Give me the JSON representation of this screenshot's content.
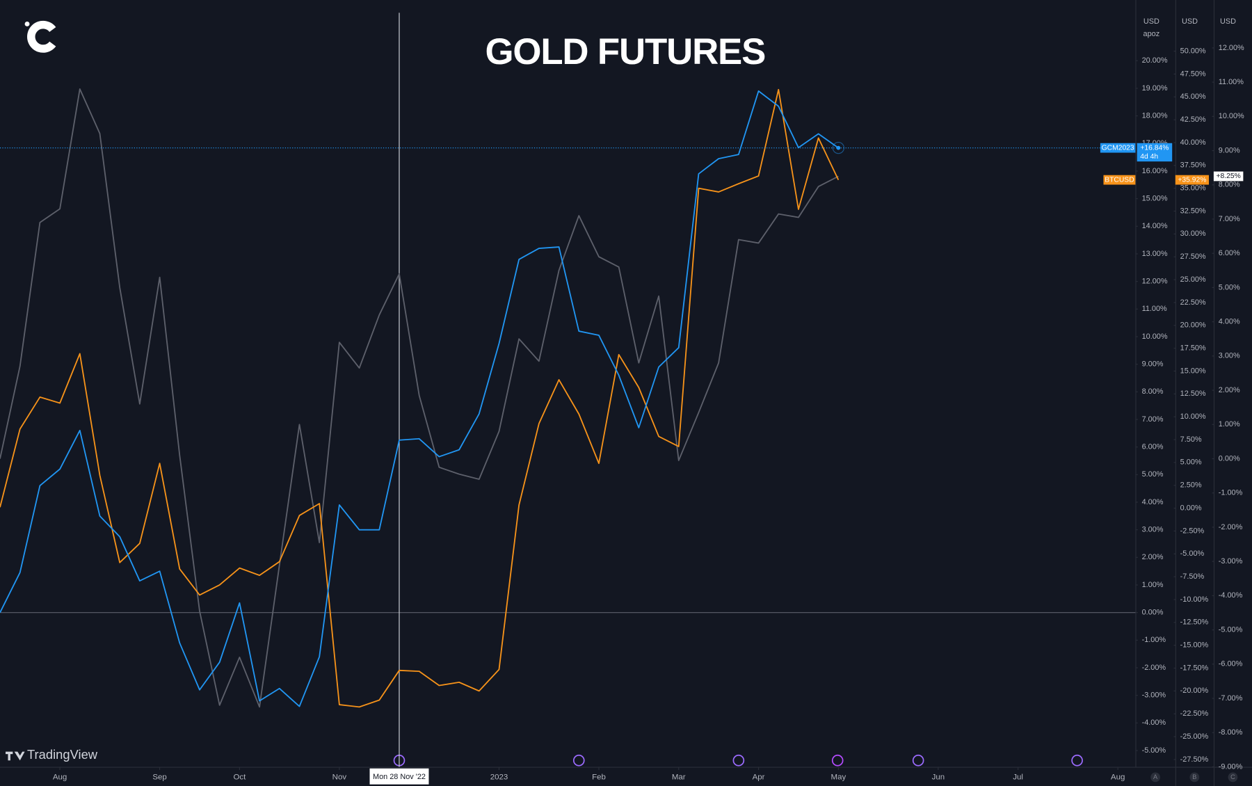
{
  "chart_data": {
    "type": "line",
    "title": "GOLD FUTURES",
    "brand": "TradingView",
    "axis_headers": [
      "USD",
      "USD",
      "USD"
    ],
    "axis_mode": "apoz",
    "countdown": "4d 4h",
    "panes": [
      "A",
      "B",
      "C"
    ],
    "x": [
      0,
      1,
      2,
      3,
      4,
      5,
      6,
      7,
      8,
      9,
      10,
      11,
      12,
      13,
      14,
      15,
      16,
      17,
      18,
      19,
      20,
      21,
      22,
      23,
      24,
      25,
      26,
      27,
      28,
      29,
      30,
      31,
      32,
      33,
      34,
      35,
      36,
      37,
      38,
      39,
      40,
      41,
      42
    ],
    "xlim": [
      0,
      56.88
    ],
    "xticks": [
      {
        "value": 3,
        "label": "Aug"
      },
      {
        "value": 8,
        "label": "Sep"
      },
      {
        "value": 12,
        "label": "Oct"
      },
      {
        "value": 17,
        "label": "Nov"
      },
      {
        "value": 25,
        "label": "2023"
      },
      {
        "value": 30,
        "label": "Feb"
      },
      {
        "value": 34,
        "label": "Mar"
      },
      {
        "value": 38,
        "label": "Apr"
      },
      {
        "value": 42,
        "label": "May"
      },
      {
        "value": 47,
        "label": "Jun"
      },
      {
        "value": 51,
        "label": "Jul"
      },
      {
        "value": 56,
        "label": "Aug"
      }
    ],
    "crosshair": {
      "value": 20,
      "label": "Mon 28 Nov '22"
    },
    "ylim": [
      -5.59,
      22.2
    ],
    "yticks": [
      {
        "value": -5,
        "label": "-5.00%"
      },
      {
        "value": -4,
        "label": "-4.00%"
      },
      {
        "value": -3,
        "label": "-3.00%"
      },
      {
        "value": -2,
        "label": "-2.00%"
      },
      {
        "value": -1,
        "label": "-1.00%"
      },
      {
        "value": 0,
        "label": "0.00%"
      },
      {
        "value": 1,
        "label": "1.00%"
      },
      {
        "value": 2,
        "label": "2.00%"
      },
      {
        "value": 3,
        "label": "3.00%"
      },
      {
        "value": 4,
        "label": "4.00%"
      },
      {
        "value": 5,
        "label": "5.00%"
      },
      {
        "value": 6,
        "label": "6.00%"
      },
      {
        "value": 7,
        "label": "7.00%"
      },
      {
        "value": 8,
        "label": "8.00%"
      },
      {
        "value": 9,
        "label": "9.00%"
      },
      {
        "value": 10,
        "label": "10.00%"
      },
      {
        "value": 11,
        "label": "11.00%"
      },
      {
        "value": 12,
        "label": "12.00%"
      },
      {
        "value": 13,
        "label": "13.00%"
      },
      {
        "value": 14,
        "label": "14.00%"
      },
      {
        "value": 15,
        "label": "15.00%"
      },
      {
        "value": 16,
        "label": "16.00%"
      },
      {
        "value": 17,
        "label": "17.00%"
      },
      {
        "value": 18,
        "label": "18.00%"
      },
      {
        "value": 19,
        "label": "19.00%"
      },
      {
        "value": 20,
        "label": "20.00%"
      }
    ],
    "y2lim": [
      -28.3,
      55.6
    ],
    "y2ticks": [
      {
        "value": -27.5,
        "label": "-27.50%"
      },
      {
        "value": -25,
        "label": "-25.00%"
      },
      {
        "value": -22.5,
        "label": "-22.50%"
      },
      {
        "value": -20,
        "label": "-20.00%"
      },
      {
        "value": -17.5,
        "label": "-17.50%"
      },
      {
        "value": -15,
        "label": "-15.00%"
      },
      {
        "value": -12.5,
        "label": "-12.50%"
      },
      {
        "value": -10,
        "label": "-10.00%"
      },
      {
        "value": -7.5,
        "label": "-7.50%"
      },
      {
        "value": -5,
        "label": "-5.00%"
      },
      {
        "value": -2.5,
        "label": "-2.50%"
      },
      {
        "value": 0,
        "label": "0.00%"
      },
      {
        "value": 2.5,
        "label": "2.50%"
      },
      {
        "value": 5,
        "label": "5.00%"
      },
      {
        "value": 7.5,
        "label": "7.50%"
      },
      {
        "value": 10,
        "label": "10.00%"
      },
      {
        "value": 12.5,
        "label": "12.50%"
      },
      {
        "value": 15,
        "label": "15.00%"
      },
      {
        "value": 17.5,
        "label": "17.50%"
      },
      {
        "value": 20,
        "label": "20.00%"
      },
      {
        "value": 22.5,
        "label": "22.50%"
      },
      {
        "value": 25,
        "label": "25.00%"
      },
      {
        "value": 27.5,
        "label": "27.50%"
      },
      {
        "value": 30,
        "label": "30.00%"
      },
      {
        "value": 32.5,
        "label": "32.50%"
      },
      {
        "value": 35,
        "label": "35.00%"
      },
      {
        "value": 37.5,
        "label": "37.50%"
      },
      {
        "value": 40,
        "label": "40.00%"
      },
      {
        "value": 42.5,
        "label": "42.50%"
      },
      {
        "value": 45,
        "label": "45.00%"
      },
      {
        "value": 47.5,
        "label": "47.50%"
      },
      {
        "value": 50,
        "label": "50.00%"
      }
    ],
    "y3lim": [
      -9,
      13.4
    ],
    "y3ticks": [
      {
        "value": -9,
        "label": "-9.00%"
      },
      {
        "value": -8,
        "label": "-8.00%"
      },
      {
        "value": -7,
        "label": "-7.00%"
      },
      {
        "value": -6,
        "label": "-6.00%"
      },
      {
        "value": -5,
        "label": "-5.00%"
      },
      {
        "value": -4,
        "label": "-4.00%"
      },
      {
        "value": -3,
        "label": "-3.00%"
      },
      {
        "value": -2,
        "label": "-2.00%"
      },
      {
        "value": -1,
        "label": "-1.00%"
      },
      {
        "value": 0,
        "label": "0.00%"
      },
      {
        "value": 1,
        "label": "1.00%"
      },
      {
        "value": 2,
        "label": "2.00%"
      },
      {
        "value": 3,
        "label": "3.00%"
      },
      {
        "value": 4,
        "label": "4.00%"
      },
      {
        "value": 5,
        "label": "5.00%"
      },
      {
        "value": 6,
        "label": "6.00%"
      },
      {
        "value": 7,
        "label": "7.00%"
      },
      {
        "value": 8,
        "label": "8.00%"
      },
      {
        "value": 9,
        "label": "9.00%"
      },
      {
        "value": 10,
        "label": "10.00%"
      },
      {
        "value": 11,
        "label": "11.00%"
      },
      {
        "value": 12,
        "label": "12.00%"
      }
    ],
    "series": [
      {
        "name": "GCM2023",
        "color": "#2196f3",
        "axis": "y",
        "last_label": "+16.84%",
        "values": [
          0,
          1.45,
          4.6,
          5.2,
          6.6,
          3.5,
          2.75,
          1.15,
          1.5,
          -1.1,
          -2.8,
          -1.8,
          0.35,
          -3.2,
          -2.75,
          -3.4,
          -1.6,
          3.9,
          3.0,
          3.0,
          6.25,
          6.3,
          5.65,
          5.9,
          7.2,
          9.75,
          12.8,
          13.2,
          13.25,
          10.2,
          10.05,
          8.6,
          6.7,
          8.9,
          9.6,
          15.9,
          16.45,
          16.6,
          18.9,
          18.35,
          16.85,
          17.35,
          16.84
        ]
      },
      {
        "name": "BTCUSD",
        "color": "#f7931a",
        "axis": "y2",
        "last_label": "+35.92%",
        "values": [
          0.1,
          8.65,
          12.15,
          11.5,
          16.9,
          3.6,
          -5.95,
          -3.85,
          4.9,
          -6.65,
          -9.5,
          -8.4,
          -6.55,
          -7.35,
          -5.85,
          -0.8,
          0.5,
          -21.5,
          -21.75,
          -21,
          -17.75,
          -17.85,
          -19.4,
          -19.05,
          -20,
          -17.65,
          0.35,
          9.25,
          14.05,
          10.3,
          4.9,
          16.8,
          13.2,
          7.85,
          6.75,
          35,
          34.6,
          35.5,
          36.35,
          45.8,
          32.7,
          40.5,
          35.92
        ]
      },
      {
        "color": "#5d606b",
        "axis": "y3",
        "last_label": "+8.25%",
        "values": [
          0,
          2.7,
          6.9,
          7.3,
          10.8,
          9.5,
          5.0,
          1.6,
          5.3,
          0.1,
          -4.45,
          -7.2,
          -5.8,
          -7.25,
          -3.1,
          1.0,
          -2.45,
          3.4,
          2.65,
          4.2,
          5.4,
          1.85,
          -0.25,
          -0.45,
          -0.6,
          0.8,
          3.5,
          2.85,
          5.5,
          7.1,
          5.9,
          5.6,
          2.8,
          4.75,
          -0.05,
          1.35,
          2.8,
          6.4,
          6.3,
          7.15,
          7.05,
          7.95,
          8.25
        ]
      }
    ]
  }
}
